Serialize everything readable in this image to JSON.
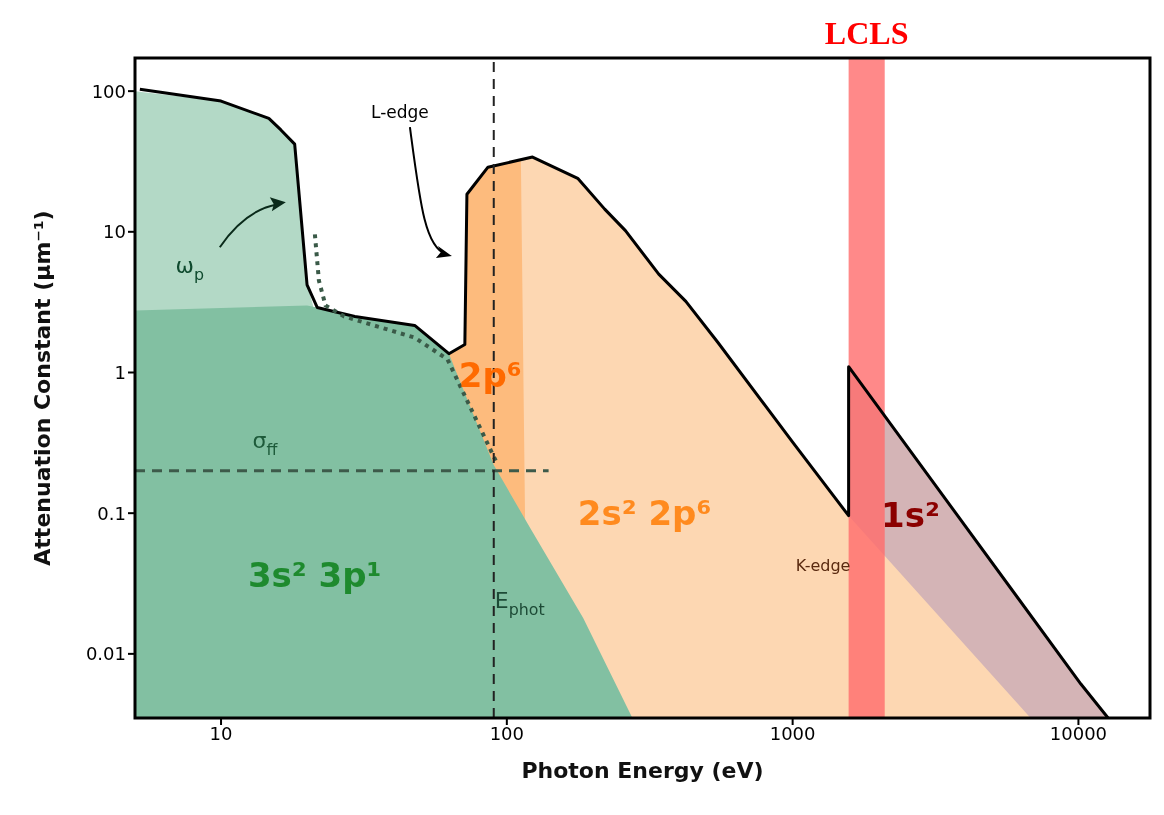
{
  "chart_data": {
    "type": "area",
    "xlabel": "Photon Energy (eV)",
    "ylabel": "Attenuation Constant  (μm⁻¹)",
    "log": "xy",
    "xlim": [
      5,
      17800
    ],
    "xticks": [
      10,
      100,
      1000,
      10000
    ],
    "ylim": [
      0.0035,
      172
    ],
    "yticks": [
      0.01,
      0.1,
      1,
      10,
      100
    ],
    "grid": false,
    "legend": false,
    "marker": "none",
    "series": [
      {
        "color": "#d4b4b6",
        "x": [
          1570,
          10200,
          12700
        ],
        "values": [
          1.1,
          0.0061,
          0.0035
        ]
      },
      {
        "color": "#fdd7b2",
        "x": [
          112,
          123,
          177,
          220,
          260,
          340,
          423,
          547,
          1000,
          1570,
          6800
        ],
        "values": [
          32,
          34,
          24,
          14.5,
          10.2,
          5.0,
          3.2,
          1.64,
          0.32,
          0.096,
          0.0035
        ]
      },
      {
        "color": "#fdbb7d",
        "x": [
          62.7,
          71.3,
          72.5,
          85.9,
          112,
          118
        ],
        "values": [
          1.36,
          1.58,
          18.5,
          28.8,
          32,
          0.0035
        ]
      },
      {
        "color": "#b3d9c6",
        "x": [
          5,
          10,
          14.7,
          16.2,
          18.1,
          20,
          21
        ],
        "values": [
          100,
          85,
          64,
          53,
          42,
          4.2,
          3.0
        ]
      },
      {
        "color": "#82c0a2",
        "x": [
          5,
          20,
          21.7,
          29.4,
          47.6,
          62.7,
          90,
          120,
          185,
          275
        ],
        "values": [
          2.76,
          3.0,
          2.9,
          2.5,
          2.16,
          1.36,
          0.22,
          0.08,
          0.018,
          0.0035
        ]
      },
      {
        "type": "line",
        "color": "#000000",
        "line_style": "solid",
        "x": [
          5.2,
          10,
          14.7,
          16.2,
          18.1,
          20,
          21.7,
          29.4,
          47.6,
          62.7,
          71.3,
          72.5,
          85.9,
          123,
          177,
          220,
          260,
          340,
          423,
          547,
          1000,
          1570,
          1570,
          10200,
          12700
        ],
        "values": [
          103,
          85,
          64,
          53,
          42,
          4.2,
          2.9,
          2.5,
          2.16,
          1.36,
          1.58,
          18.5,
          28.8,
          34,
          24,
          14.5,
          10.2,
          5.0,
          3.2,
          1.64,
          0.32,
          0.096,
          1.1,
          0.0061,
          0.0035
        ]
      },
      {
        "type": "line",
        "color": "#3a5a48",
        "line_style": "dotted",
        "x": [
          21.3,
          22,
          23.2,
          27,
          47.6,
          62,
          92
        ],
        "values": [
          9.6,
          4.5,
          3.0,
          2.5,
          1.77,
          1.24,
          0.23
        ]
      },
      {
        "type": "line",
        "color": "#3d5a4a",
        "line_style": "dashed",
        "x": [
          5,
          140
        ],
        "values": [
          0.2,
          0.2
        ]
      }
    ],
    "bands": [
      {
        "axis": "x",
        "from": 1570,
        "to": 2100,
        "label": "LCLS",
        "color": "#ff6b6b"
      }
    ],
    "ref_lines": [
      {
        "axis": "x",
        "value": 90,
        "color": "#222222",
        "line_style": "dashed"
      }
    ],
    "annotations": [
      "L-edge",
      "ω$_{p}$",
      "σ$_{ff}$",
      "E$_{phot}$",
      "3s² 3p¹",
      "2s² 2p⁶",
      "2p⁶",
      "1s²",
      "K-edge"
    ]
  }
}
